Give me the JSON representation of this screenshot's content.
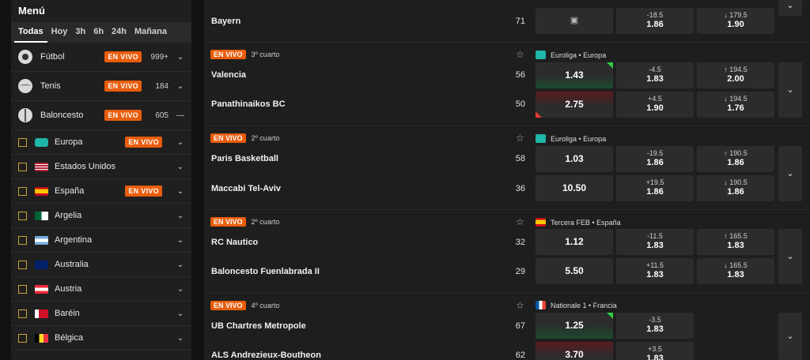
{
  "sidebar": {
    "title": "Menú",
    "tabs": [
      "Todas",
      "Hoy",
      "3h",
      "6h",
      "24h",
      "Mañana"
    ],
    "sports": [
      {
        "name": "Fútbol",
        "live": "EN VIVO",
        "count": "999+",
        "icon": "soccer-ball-icon",
        "chev": "⌄"
      },
      {
        "name": "Tenis",
        "live": "EN VIVO",
        "count": "184",
        "icon": "tennis-ball-icon",
        "chev": "⌄"
      },
      {
        "name": "Baloncesto",
        "live": "EN VIVO",
        "count": "605",
        "icon": "basketball-icon",
        "chev": "—"
      }
    ],
    "countries": [
      {
        "name": "Europa",
        "live": "EN VIVO",
        "flag": "globe"
      },
      {
        "name": "Estados Unidos",
        "live": "",
        "flag": "us"
      },
      {
        "name": "España",
        "live": "EN VIVO",
        "flag": "es"
      },
      {
        "name": "Argelia",
        "live": "",
        "flag": "dz"
      },
      {
        "name": "Argentina",
        "live": "",
        "flag": "ar"
      },
      {
        "name": "Australia",
        "live": "",
        "flag": "au"
      },
      {
        "name": "Austria",
        "live": "",
        "flag": "at"
      },
      {
        "name": "Baréin",
        "live": "",
        "flag": "bh"
      },
      {
        "name": "Bélgica",
        "live": "",
        "flag": "be"
      }
    ]
  },
  "events": [
    {
      "partial": true,
      "team2": "Bayern",
      "score2": "71",
      "spread2": {
        "line": "-18.5",
        "price": "1.86"
      },
      "total2": {
        "line": "↓ 179.5",
        "price": "1.90"
      }
    },
    {
      "live": "EN VIVO",
      "period": "3º cuarto",
      "league": "Euroliga • Europa",
      "team1": "Valencia",
      "score1": "56",
      "team2": "Panathinaikos BC",
      "score2": "50",
      "ml1": "1.43",
      "ml2": "2.75",
      "spread1": {
        "line": "-4.5",
        "price": "1.83"
      },
      "spread2": {
        "line": "+4.5",
        "price": "1.90"
      },
      "total1": {
        "line": "↑ 194.5",
        "price": "2.00"
      },
      "total2": {
        "line": "↓ 194.5",
        "price": "1.76"
      }
    },
    {
      "live": "EN VIVO",
      "period": "2º cuarto",
      "league": "Euroliga • Europa",
      "team1": "Paris Basketball",
      "score1": "58",
      "team2": "Maccabi Tel-Aviv",
      "score2": "36",
      "ml1": "1.03",
      "ml2": "10.50",
      "spread1": {
        "line": "-19.5",
        "price": "1.86"
      },
      "spread2": {
        "line": "+19.5",
        "price": "1.86"
      },
      "total1": {
        "line": "↑ 190.5",
        "price": "1.86"
      },
      "total2": {
        "line": "↓ 190.5",
        "price": "1.86"
      }
    },
    {
      "live": "EN VIVO",
      "period": "2º cuarto",
      "league": "Tercera FEB • España",
      "team1": "RC Nautico",
      "score1": "32",
      "team2": "Baloncesto Fuenlabrada II",
      "score2": "29",
      "ml1": "1.12",
      "ml2": "5.50",
      "spread1": {
        "line": "-11.5",
        "price": "1.83"
      },
      "spread2": {
        "line": "+11.5",
        "price": "1.83"
      },
      "total1": {
        "line": "↑ 165.5",
        "price": "1.83"
      },
      "total2": {
        "line": "↓ 165.5",
        "price": "1.83"
      }
    },
    {
      "live": "EN VIVO",
      "period": "4º cuarto",
      "league": "Nationale 1 • Francia",
      "team1": "UB Chartres Metropole",
      "score1": "67",
      "team2": "ALS Andrezieux-Boutheon",
      "score2": "62",
      "ml1": "1.25",
      "ml2": "3.70",
      "spread1": {
        "line": "-3.5",
        "price": "1.83"
      },
      "spread2": {
        "line": "+3.5",
        "price": "1.83"
      }
    }
  ],
  "icons": {
    "star": "☆",
    "chevron": "⌄",
    "lock": "🔒"
  },
  "colors": {
    "live": "#e85d0c",
    "up": "#2ecc40",
    "down": "#e53935",
    "checkbox": "#c8a33a"
  }
}
